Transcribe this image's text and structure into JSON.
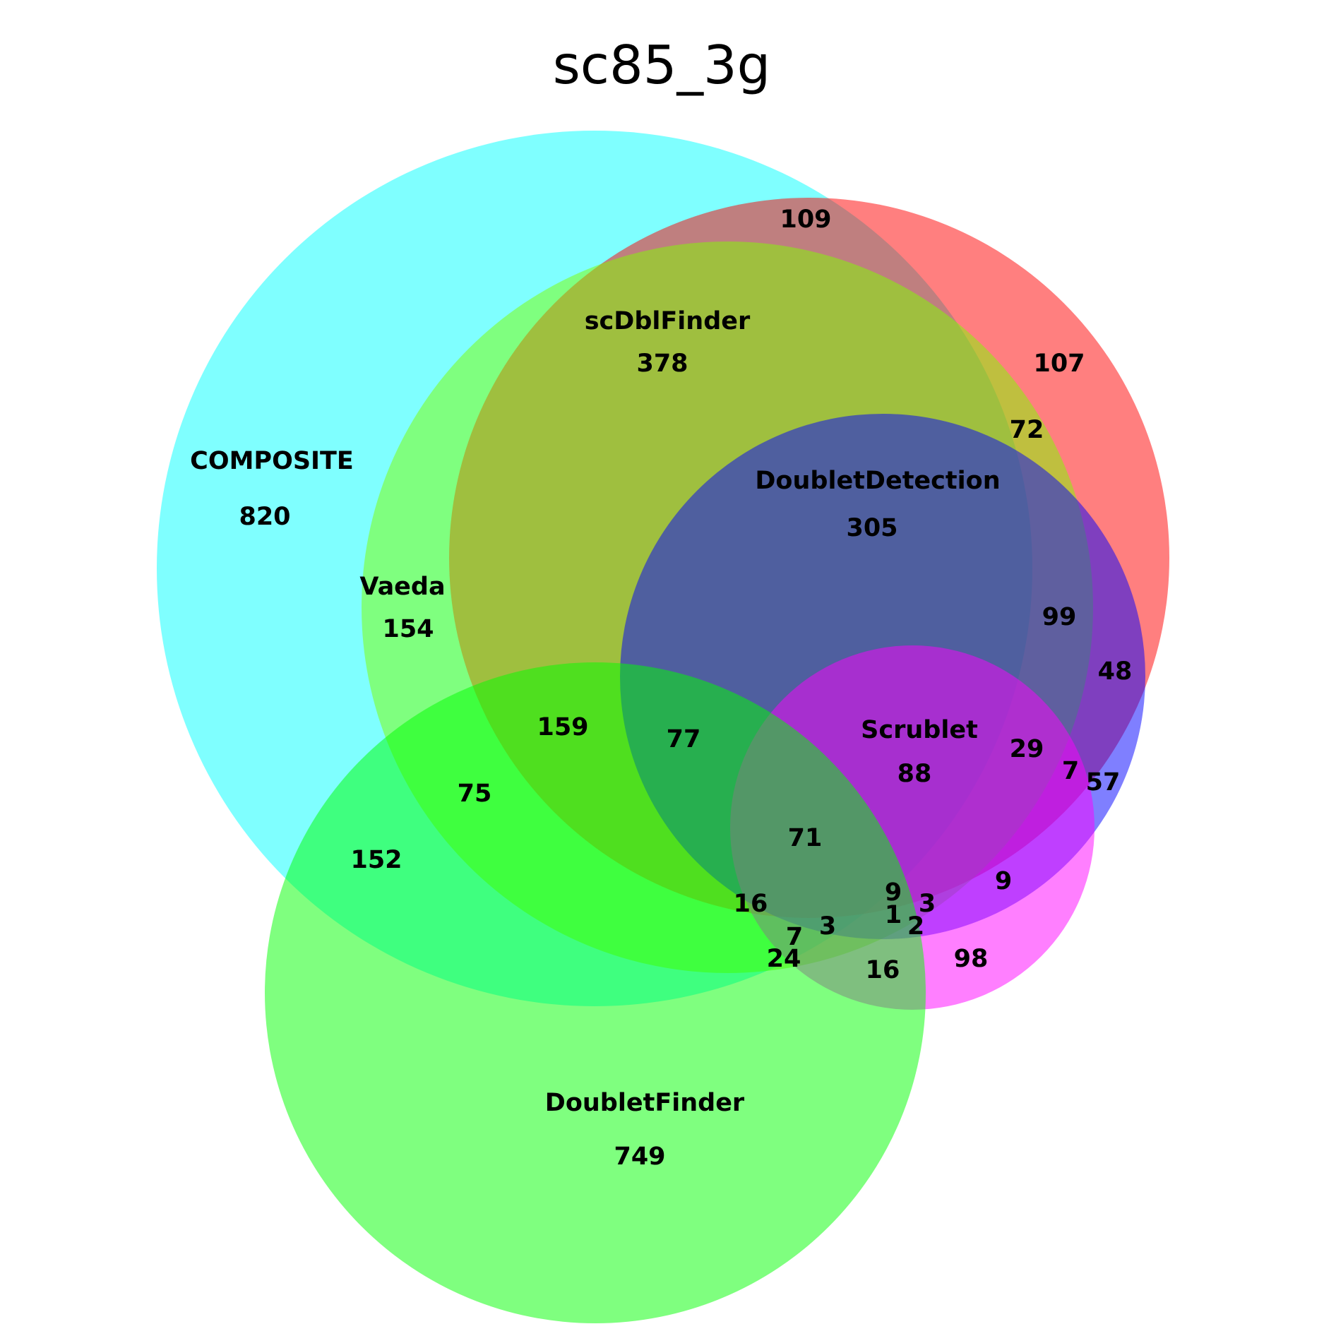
{
  "title": "sc85_3g",
  "sets": [
    {
      "key": "composite",
      "name": "COMPOSITE",
      "count": "820",
      "color": "#00ffff"
    },
    {
      "key": "scdblfinder",
      "name": "scDblFinder",
      "count": "378",
      "color": "#ff0000"
    },
    {
      "key": "vaeda",
      "name": "Vaeda",
      "count": "154",
      "color": "#80ff00"
    },
    {
      "key": "doubletdetection",
      "name": "DoubletDetection",
      "count": "305",
      "color": "#0000ff"
    },
    {
      "key": "scrublet",
      "name": "Scrublet",
      "count": "88",
      "color": "#ff00ff"
    },
    {
      "key": "doubletfinder",
      "name": "DoubletFinder",
      "count": "749",
      "color": "#00ff00"
    }
  ],
  "regions": [
    "109",
    "107",
    "72",
    "99",
    "48",
    "159",
    "77",
    "75",
    "152",
    "29",
    "7",
    "57",
    "71",
    "9",
    "3",
    "9",
    "1",
    "2",
    "16",
    "3",
    "7",
    "24",
    "16",
    "98"
  ]
}
